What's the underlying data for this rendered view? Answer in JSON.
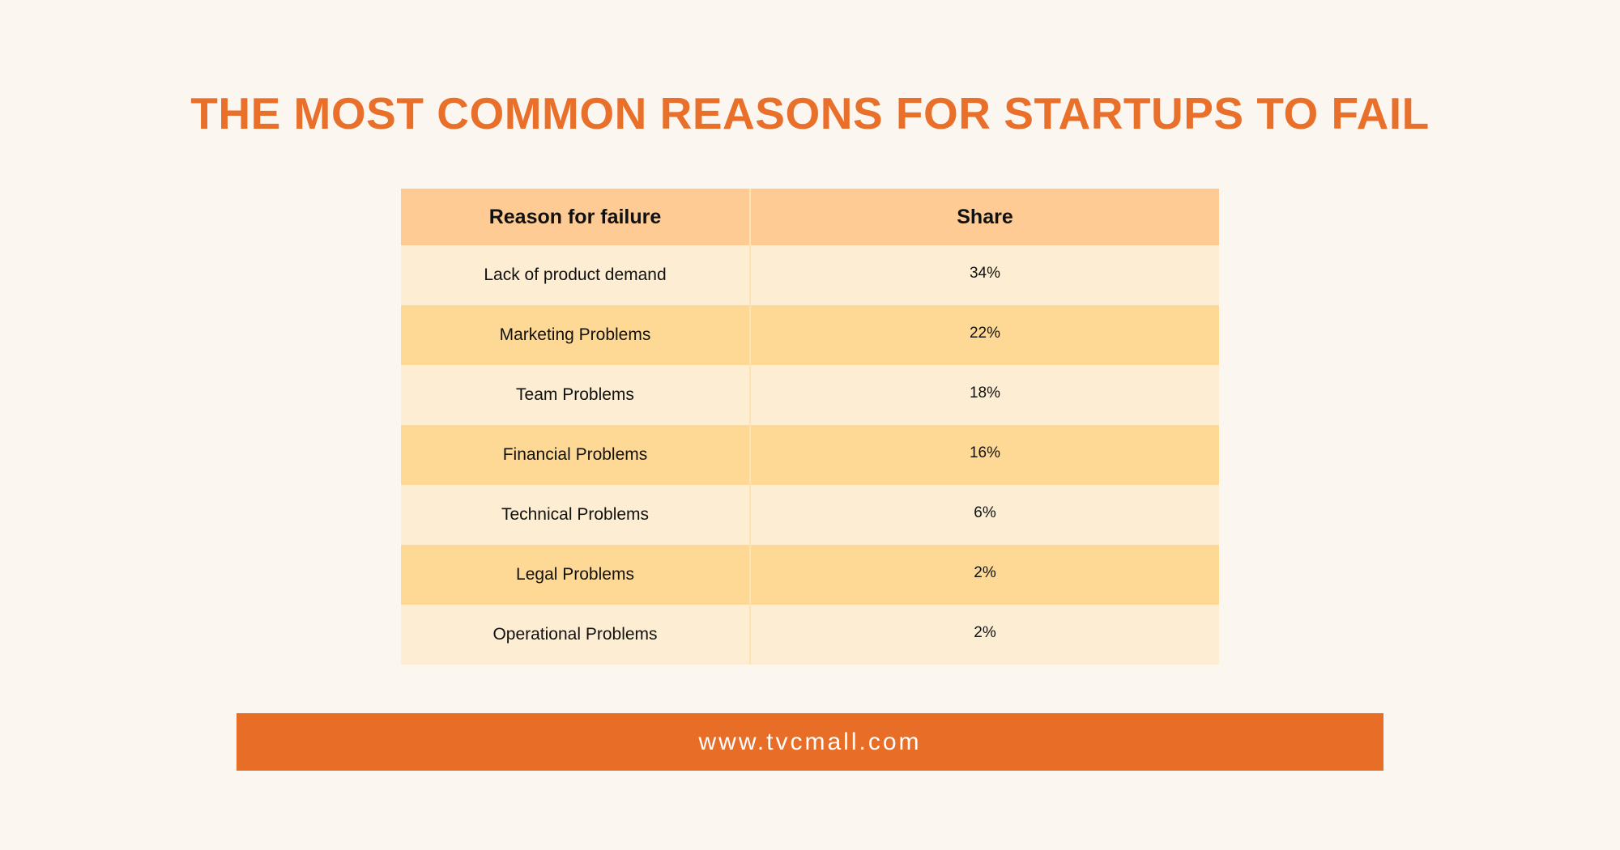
{
  "title": "THE MOST COMMON REASONS FOR STARTUPS TO FAIL",
  "table": {
    "headers": [
      "Reason for failure",
      "Share"
    ],
    "rows": [
      {
        "reason": "Lack of product demand",
        "share": "34%"
      },
      {
        "reason": "Marketing Problems",
        "share": "22%"
      },
      {
        "reason": "Team Problems",
        "share": "18%"
      },
      {
        "reason": "Financial Problems",
        "share": "16%"
      },
      {
        "reason": "Technical Problems",
        "share": "6%"
      },
      {
        "reason": "Legal Problems",
        "share": "2%"
      },
      {
        "reason": "Operational Problems",
        "share": "2%"
      }
    ]
  },
  "footer": {
    "url": "www.tvcmall.com"
  },
  "colors": {
    "accent": "#e8702a",
    "header_row": "#fecb94",
    "row_light": "#fdeed3",
    "row_dark": "#fed995",
    "background": "#fbf7f0"
  }
}
